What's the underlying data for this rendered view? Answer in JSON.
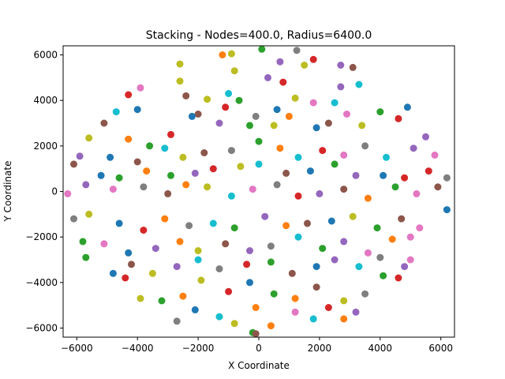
{
  "chart_data": {
    "type": "scatter",
    "title": "Stacking - Nodes=400.0, Radius=6400.0",
    "xlabel": "X Coordinate",
    "ylabel": "Y Coordinate",
    "xlim": [
      -6450,
      6450
    ],
    "ylim": [
      -6400,
      6400
    ],
    "xticks": [
      -6000,
      -4000,
      -2000,
      0,
      2000,
      4000,
      6000
    ],
    "yticks": [
      -6000,
      -4000,
      -2000,
      0,
      2000,
      4000,
      6000
    ],
    "grid": false,
    "colors": [
      "#1f77b4",
      "#ff7f0e",
      "#2ca02c",
      "#d62728",
      "#9467bd",
      "#8c564b",
      "#e377c2",
      "#7f7f7f",
      "#bcbd22",
      "#17becf"
    ],
    "points": [
      {
        "x": -2600,
        "y": 5600,
        "c": 8
      },
      {
        "x": -1200,
        "y": 6000,
        "c": 1
      },
      {
        "x": -900,
        "y": 6050,
        "c": 8
      },
      {
        "x": 100,
        "y": 6250,
        "c": 2
      },
      {
        "x": 1250,
        "y": 6200,
        "c": 7
      },
      {
        "x": -2600,
        "y": 4850,
        "c": 8
      },
      {
        "x": -800,
        "y": 5300,
        "c": 8
      },
      {
        "x": 700,
        "y": 5700,
        "c": 4
      },
      {
        "x": 1500,
        "y": 5550,
        "c": 8
      },
      {
        "x": 1800,
        "y": 5800,
        "c": 3
      },
      {
        "x": 2700,
        "y": 5550,
        "c": 4
      },
      {
        "x": 3100,
        "y": 5450,
        "c": 5
      },
      {
        "x": -4300,
        "y": 4250,
        "c": 3
      },
      {
        "x": -3900,
        "y": 4550,
        "c": 6
      },
      {
        "x": -2400,
        "y": 4200,
        "c": 5
      },
      {
        "x": -1700,
        "y": 4050,
        "c": 8
      },
      {
        "x": -1000,
        "y": 4300,
        "c": 9
      },
      {
        "x": -650,
        "y": 4000,
        "c": 2
      },
      {
        "x": 300,
        "y": 5000,
        "c": 4
      },
      {
        "x": 800,
        "y": 4800,
        "c": 3
      },
      {
        "x": 2700,
        "y": 4600,
        "c": 4
      },
      {
        "x": 3300,
        "y": 4700,
        "c": 9
      },
      {
        "x": -4700,
        "y": 3500,
        "c": 9
      },
      {
        "x": -4000,
        "y": 3600,
        "c": 0
      },
      {
        "x": -2000,
        "y": 3400,
        "c": 5
      },
      {
        "x": -1100,
        "y": 3700,
        "c": 3
      },
      {
        "x": -100,
        "y": 3300,
        "c": 7
      },
      {
        "x": 600,
        "y": 3600,
        "c": 0
      },
      {
        "x": 1200,
        "y": 4100,
        "c": 8
      },
      {
        "x": 1800,
        "y": 3900,
        "c": 6
      },
      {
        "x": 2500,
        "y": 3900,
        "c": 9
      },
      {
        "x": 2900,
        "y": 3400,
        "c": 6
      },
      {
        "x": 4000,
        "y": 3500,
        "c": 2
      },
      {
        "x": 4900,
        "y": 3700,
        "c": 0
      },
      {
        "x": -5100,
        "y": 3000,
        "c": 5
      },
      {
        "x": -4300,
        "y": 2300,
        "c": 1
      },
      {
        "x": -3600,
        "y": 2000,
        "c": 2
      },
      {
        "x": -2900,
        "y": 2500,
        "c": 3
      },
      {
        "x": -2200,
        "y": 3300,
        "c": 0
      },
      {
        "x": -1300,
        "y": 3000,
        "c": 4
      },
      {
        "x": -300,
        "y": 2900,
        "c": 2
      },
      {
        "x": 500,
        "y": 2900,
        "c": 8
      },
      {
        "x": 1000,
        "y": 3300,
        "c": 1
      },
      {
        "x": 1900,
        "y": 2800,
        "c": 0
      },
      {
        "x": 2300,
        "y": 3000,
        "c": 5
      },
      {
        "x": 3400,
        "y": 2900,
        "c": 8
      },
      {
        "x": 4600,
        "y": 3200,
        "c": 3
      },
      {
        "x": 5500,
        "y": 2400,
        "c": 4
      },
      {
        "x": -5600,
        "y": 2350,
        "c": 8
      },
      {
        "x": -4900,
        "y": 1500,
        "c": 0
      },
      {
        "x": -4000,
        "y": 1300,
        "c": 5
      },
      {
        "x": -3100,
        "y": 1900,
        "c": 9
      },
      {
        "x": -2500,
        "y": 1500,
        "c": 8
      },
      {
        "x": -1800,
        "y": 1700,
        "c": 5
      },
      {
        "x": -900,
        "y": 1800,
        "c": 7
      },
      {
        "x": 0,
        "y": 2200,
        "c": 2
      },
      {
        "x": 700,
        "y": 1900,
        "c": 1
      },
      {
        "x": 1300,
        "y": 1500,
        "c": 9
      },
      {
        "x": 2100,
        "y": 1800,
        "c": 3
      },
      {
        "x": 2800,
        "y": 1600,
        "c": 6
      },
      {
        "x": 3500,
        "y": 2000,
        "c": 7
      },
      {
        "x": 4200,
        "y": 1500,
        "c": 9
      },
      {
        "x": 5100,
        "y": 1900,
        "c": 4
      },
      {
        "x": 5800,
        "y": 1600,
        "c": 6
      },
      {
        "x": -5900,
        "y": 1550,
        "c": 4
      },
      {
        "x": -6100,
        "y": 1200,
        "c": 5
      },
      {
        "x": -5200,
        "y": 700,
        "c": 0
      },
      {
        "x": -4600,
        "y": 600,
        "c": 2
      },
      {
        "x": -3700,
        "y": 900,
        "c": 1
      },
      {
        "x": -2900,
        "y": 700,
        "c": 2
      },
      {
        "x": -2100,
        "y": 800,
        "c": 4
      },
      {
        "x": -1500,
        "y": 1000,
        "c": 3
      },
      {
        "x": -600,
        "y": 1100,
        "c": 8
      },
      {
        "x": 0,
        "y": 1200,
        "c": 9
      },
      {
        "x": 900,
        "y": 800,
        "c": 5
      },
      {
        "x": 1700,
        "y": 900,
        "c": 0
      },
      {
        "x": 2500,
        "y": 1200,
        "c": 2
      },
      {
        "x": 3200,
        "y": 700,
        "c": 4
      },
      {
        "x": 4100,
        "y": 700,
        "c": 0
      },
      {
        "x": 4800,
        "y": 600,
        "c": 3
      },
      {
        "x": 5600,
        "y": 900,
        "c": 3
      },
      {
        "x": 6200,
        "y": 600,
        "c": 7
      },
      {
        "x": -6300,
        "y": -100,
        "c": 6
      },
      {
        "x": -5700,
        "y": 300,
        "c": 4
      },
      {
        "x": -4800,
        "y": 100,
        "c": 6
      },
      {
        "x": -3800,
        "y": 200,
        "c": 7
      },
      {
        "x": -3000,
        "y": -100,
        "c": 5
      },
      {
        "x": -2400,
        "y": 300,
        "c": 1
      },
      {
        "x": -1700,
        "y": 200,
        "c": 8
      },
      {
        "x": -900,
        "y": -200,
        "c": 9
      },
      {
        "x": -200,
        "y": 100,
        "c": 6
      },
      {
        "x": 600,
        "y": 300,
        "c": 7
      },
      {
        "x": 1300,
        "y": -200,
        "c": 3
      },
      {
        "x": 2000,
        "y": -100,
        "c": 4
      },
      {
        "x": 2800,
        "y": 100,
        "c": 5
      },
      {
        "x": 3600,
        "y": -300,
        "c": 1
      },
      {
        "x": 4500,
        "y": 200,
        "c": 2
      },
      {
        "x": 5200,
        "y": -100,
        "c": 6
      },
      {
        "x": 5900,
        "y": 200,
        "c": 5
      },
      {
        "x": -6100,
        "y": -1200,
        "c": 7
      },
      {
        "x": -5600,
        "y": -1000,
        "c": 8
      },
      {
        "x": -4600,
        "y": -1400,
        "c": 0
      },
      {
        "x": -3800,
        "y": -1700,
        "c": 3
      },
      {
        "x": -3100,
        "y": -1200,
        "c": 1
      },
      {
        "x": -2300,
        "y": -1500,
        "c": 7
      },
      {
        "x": -1500,
        "y": -1400,
        "c": 9
      },
      {
        "x": -800,
        "y": -1600,
        "c": 2
      },
      {
        "x": 200,
        "y": -1100,
        "c": 4
      },
      {
        "x": 900,
        "y": -1500,
        "c": 1
      },
      {
        "x": 1600,
        "y": -1400,
        "c": 5
      },
      {
        "x": 2400,
        "y": -1300,
        "c": 0
      },
      {
        "x": 3100,
        "y": -1100,
        "c": 8
      },
      {
        "x": 3900,
        "y": -1600,
        "c": 2
      },
      {
        "x": 4700,
        "y": -1200,
        "c": 5
      },
      {
        "x": 5300,
        "y": -1600,
        "c": 6
      },
      {
        "x": 6200,
        "y": -800,
        "c": 0
      },
      {
        "x": -5800,
        "y": -2200,
        "c": 2
      },
      {
        "x": -5100,
        "y": -2300,
        "c": 6
      },
      {
        "x": -4300,
        "y": -2700,
        "c": 0
      },
      {
        "x": -3400,
        "y": -2500,
        "c": 4
      },
      {
        "x": -2600,
        "y": -2200,
        "c": 1
      },
      {
        "x": -2000,
        "y": -2600,
        "c": 8
      },
      {
        "x": -1100,
        "y": -2300,
        "c": 5
      },
      {
        "x": -300,
        "y": -2600,
        "c": 4
      },
      {
        "x": 400,
        "y": -2400,
        "c": 7
      },
      {
        "x": 1300,
        "y": -2000,
        "c": 9
      },
      {
        "x": 2100,
        "y": -2500,
        "c": 2
      },
      {
        "x": 2800,
        "y": -2200,
        "c": 4
      },
      {
        "x": 3600,
        "y": -2700,
        "c": 6
      },
      {
        "x": 4400,
        "y": -2100,
        "c": 1
      },
      {
        "x": 5000,
        "y": -2000,
        "c": 6
      },
      {
        "x": -5700,
        "y": -2900,
        "c": 2
      },
      {
        "x": -4800,
        "y": -3600,
        "c": 0
      },
      {
        "x": -4200,
        "y": -3200,
        "c": 5
      },
      {
        "x": -3500,
        "y": -3600,
        "c": 8
      },
      {
        "x": -2700,
        "y": -3300,
        "c": 4
      },
      {
        "x": -2000,
        "y": -3000,
        "c": 9
      },
      {
        "x": -1300,
        "y": -3400,
        "c": 7
      },
      {
        "x": -400,
        "y": -3200,
        "c": 3
      },
      {
        "x": 400,
        "y": -3100,
        "c": 2
      },
      {
        "x": 1100,
        "y": -3600,
        "c": 5
      },
      {
        "x": 1900,
        "y": -3300,
        "c": 0
      },
      {
        "x": 2500,
        "y": -3000,
        "c": 4
      },
      {
        "x": 3300,
        "y": -3300,
        "c": 9
      },
      {
        "x": 4000,
        "y": -2900,
        "c": 7
      },
      {
        "x": 4800,
        "y": -3300,
        "c": 4
      },
      {
        "x": 5000,
        "y": -3000,
        "c": 6
      },
      {
        "x": -4400,
        "y": -3800,
        "c": 3
      },
      {
        "x": -3900,
        "y": -4700,
        "c": 8
      },
      {
        "x": -3200,
        "y": -4800,
        "c": 2
      },
      {
        "x": -2500,
        "y": -4600,
        "c": 1
      },
      {
        "x": -1900,
        "y": -3900,
        "c": 8
      },
      {
        "x": -1000,
        "y": -4400,
        "c": 3
      },
      {
        "x": -300,
        "y": -4000,
        "c": 0
      },
      {
        "x": 500,
        "y": -4500,
        "c": 2
      },
      {
        "x": 1200,
        "y": -4700,
        "c": 1
      },
      {
        "x": 1900,
        "y": -4200,
        "c": 5
      },
      {
        "x": 2800,
        "y": -4800,
        "c": 8
      },
      {
        "x": 3500,
        "y": -4500,
        "c": 7
      },
      {
        "x": 4100,
        "y": -3700,
        "c": 2
      },
      {
        "x": 4600,
        "y": -3800,
        "c": 3
      },
      {
        "x": -2700,
        "y": -5700,
        "c": 7
      },
      {
        "x": -2100,
        "y": -5200,
        "c": 0
      },
      {
        "x": -1300,
        "y": -5500,
        "c": 9
      },
      {
        "x": -800,
        "y": -5800,
        "c": 8
      },
      {
        "x": -100,
        "y": -5100,
        "c": 1
      },
      {
        "x": 400,
        "y": -5900,
        "c": 1
      },
      {
        "x": 1200,
        "y": -5300,
        "c": 6
      },
      {
        "x": 1800,
        "y": -5600,
        "c": 9
      },
      {
        "x": 2300,
        "y": -5100,
        "c": 3
      },
      {
        "x": 2800,
        "y": -5600,
        "c": 1
      },
      {
        "x": 3200,
        "y": -5300,
        "c": 4
      },
      {
        "x": -200,
        "y": -6200,
        "c": 2
      },
      {
        "x": -100,
        "y": -6250,
        "c": 5
      }
    ]
  }
}
